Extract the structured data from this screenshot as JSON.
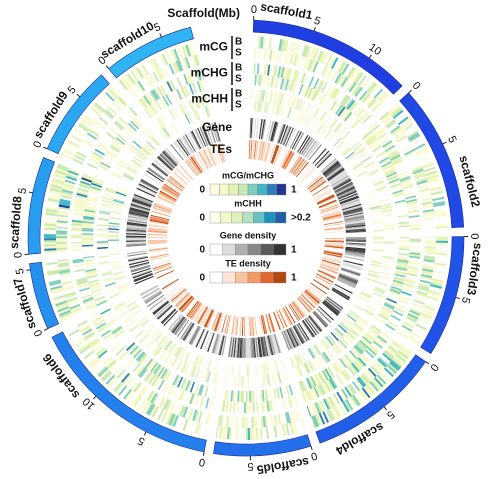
{
  "axis_label": "Scaffold(Mb)",
  "scaffolds": [
    {
      "name": "scaffold1",
      "length_mb": 13.5,
      "color": "#1f3fe0",
      "ticks": [
        0,
        5,
        10
      ]
    },
    {
      "name": "scaffold2",
      "length_mb": 12,
      "color": "#1f48e4",
      "ticks": [
        0,
        5
      ]
    },
    {
      "name": "scaffold3",
      "length_mb": 10,
      "color": "#2153e6",
      "ticks": [
        0,
        5
      ]
    },
    {
      "name": "scaffold4",
      "length_mb": 11,
      "color": "#225fe8",
      "ticks": [
        0,
        5
      ]
    },
    {
      "name": "scaffold5",
      "length_mb": 8,
      "color": "#2470ea",
      "ticks": [
        0,
        5
      ]
    },
    {
      "name": "scaffold6",
      "length_mb": 16,
      "color": "#2480ec",
      "ticks": [
        0,
        5,
        10
      ]
    },
    {
      "name": "scaffold7",
      "length_mb": 5.5,
      "color": "#2690ee",
      "ticks": [
        0,
        5
      ]
    },
    {
      "name": "scaffold8",
      "length_mb": 8,
      "color": "#289df0",
      "ticks": [
        0,
        5
      ]
    },
    {
      "name": "scaffold9",
      "length_mb": 7.5,
      "color": "#2aa8f1",
      "ticks": [
        0,
        5
      ]
    },
    {
      "name": "scaffold10",
      "length_mb": 7.5,
      "color": "#30b4f3",
      "ticks": [
        0,
        5
      ]
    }
  ],
  "tracks": [
    {
      "label": "mCG",
      "sublabels": [
        "B",
        "S"
      ]
    },
    {
      "label": "mCHG",
      "sublabels": [
        "B",
        "S"
      ]
    },
    {
      "label": "mCHH",
      "sublabels": [
        "B",
        "S"
      ]
    },
    {
      "label": "Gene"
    },
    {
      "label": "TEs"
    }
  ],
  "legend": [
    {
      "title": "mCG/mCHG",
      "low": 0,
      "high": 1
    },
    {
      "title": "mCHH",
      "low": 0,
      "high": ">0.2"
    },
    {
      "title": "Gene density",
      "low": 0,
      "high": 1
    },
    {
      "title": "TE density",
      "low": 0,
      "high": 1
    }
  ]
}
